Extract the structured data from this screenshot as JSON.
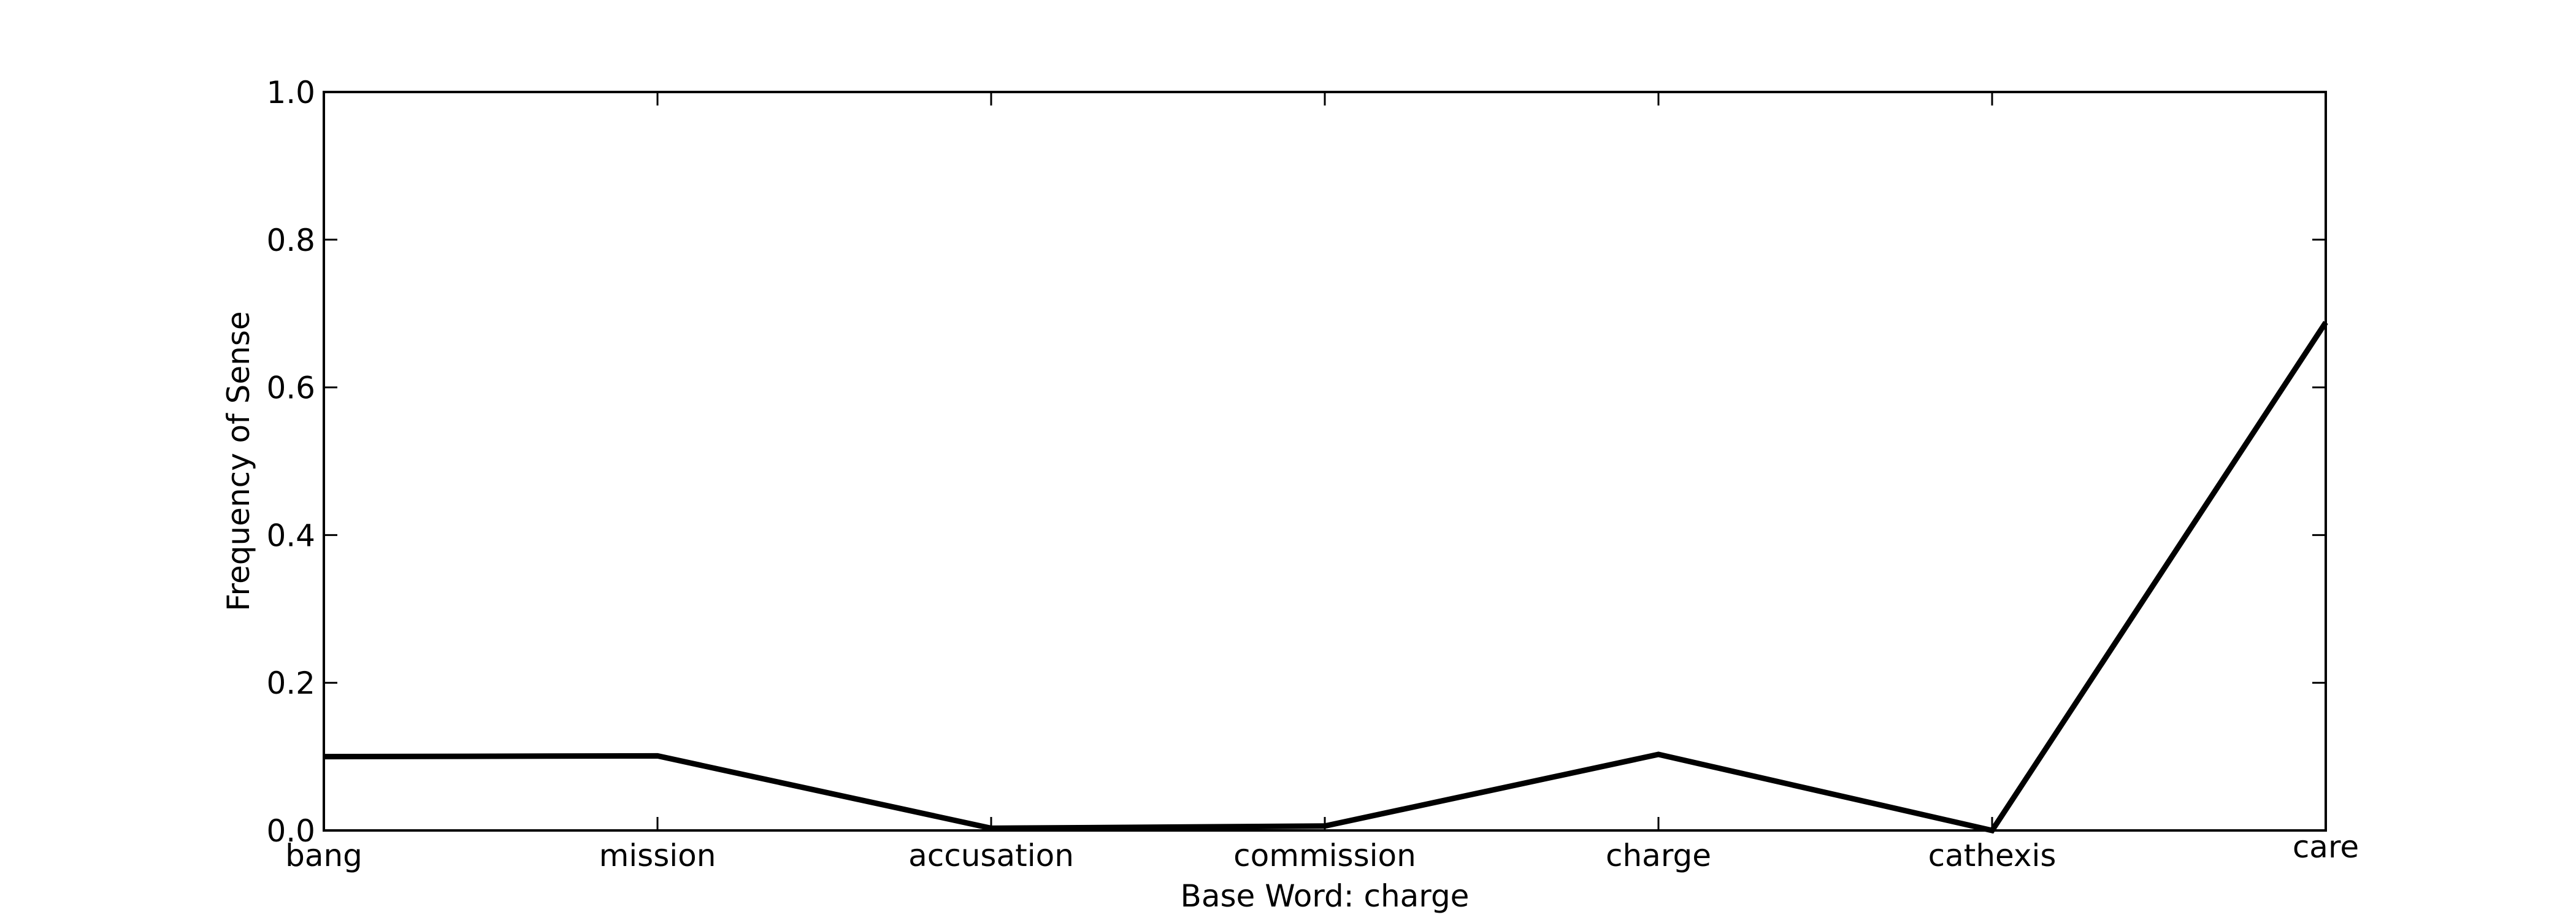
{
  "chart_data": {
    "type": "line",
    "title": "",
    "xlabel": "Base Word: charge",
    "ylabel": "Frequency of Sense",
    "categories": [
      "bang",
      "mission",
      "accusation",
      "commission",
      "charge",
      "cathexis",
      "care"
    ],
    "series": [
      {
        "values": [
          0.1,
          0.101,
          0.003,
          0.006,
          0.103,
          0.0,
          0.688
        ]
      }
    ],
    "ylim": [
      0,
      1.0
    ],
    "yticks": [
      "0.0",
      "0.2",
      "0.4",
      "0.6",
      "0.8",
      "1.0"
    ],
    "grid": false,
    "line_color": "#000000",
    "background_color": "#ffffff"
  }
}
